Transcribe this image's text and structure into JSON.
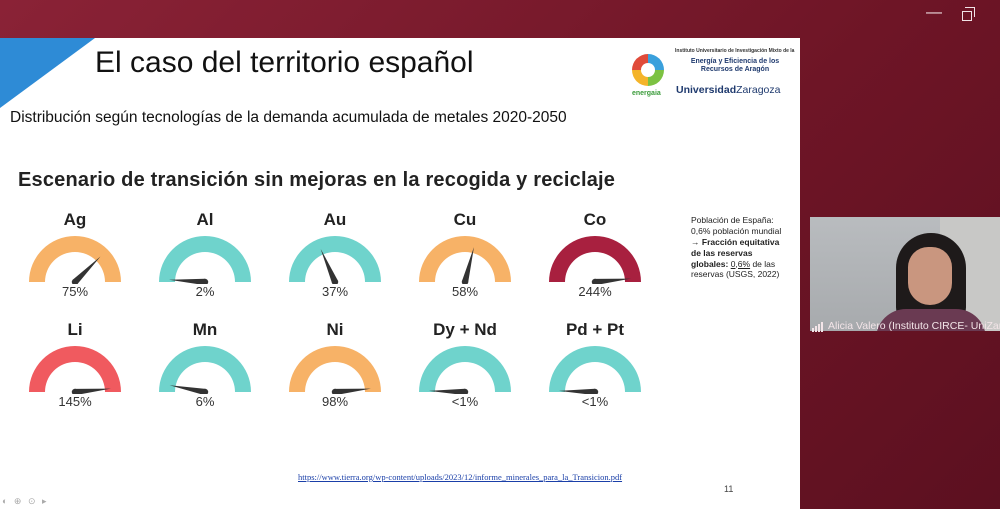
{
  "slide": {
    "title": "El caso del territorio español",
    "subtitle": "Distribución según tecnologías de la demanda acumulada de metales 2020-2050",
    "scenario": "Escenario de transición sin mejoras en la recogida y reciclaje",
    "logo": {
      "brand": "energaia",
      "institute_small": "Instituto Universitario de Investigación Mixto de la",
      "institute_big": "Energía y Eficiencia de los Recursos de Aragón",
      "university_bold": "Universidad",
      "university_rest": "Zaragoza"
    },
    "gauges": [
      {
        "label": "Ag",
        "value_text": "75%",
        "value": 75,
        "color": "#f7b267"
      },
      {
        "label": "Al",
        "value_text": "2%",
        "value": 2,
        "color": "#6fd3cc"
      },
      {
        "label": "Au",
        "value_text": "37%",
        "value": 37,
        "color": "#6fd3cc"
      },
      {
        "label": "Cu",
        "value_text": "58%",
        "value": 58,
        "color": "#f7b267"
      },
      {
        "label": "Co",
        "value_text": "244%",
        "value": 244,
        "color": "#a8203f"
      },
      {
        "label": "Li",
        "value_text": "145%",
        "value": 145,
        "color": "#f05a5f"
      },
      {
        "label": "Mn",
        "value_text": "6%",
        "value": 6,
        "color": "#6fd3cc"
      },
      {
        "label": "Ni",
        "value_text": "98%",
        "value": 98,
        "color": "#f7b267"
      },
      {
        "label": "Dy + Nd",
        "value_text": "<1%",
        "value": 0.5,
        "color": "#6fd3cc"
      },
      {
        "label": "Pd + Pt",
        "value_text": "<1%",
        "value": 0.5,
        "color": "#6fd3cc"
      }
    ],
    "note": {
      "line1": "Población de España:",
      "line2": "0,6% población mundial →",
      "bold": "Fracción equitativa de las reservas globales",
      "colon": ":",
      "underlined": "0,6%",
      "rest": " de las reservas (USGS, 2022)"
    },
    "link": "https://www.tierra.org/wp-content/uploads/2023/12/informe_minerales_para_la_Transicion.pdf",
    "page_number": "11"
  },
  "window": {
    "minimize_icon": "minimize-icon",
    "maximize_icon": "restore-icon"
  },
  "participant": {
    "name": "Alicia Valero (Instituto CIRCE- UniZar"
  }
}
